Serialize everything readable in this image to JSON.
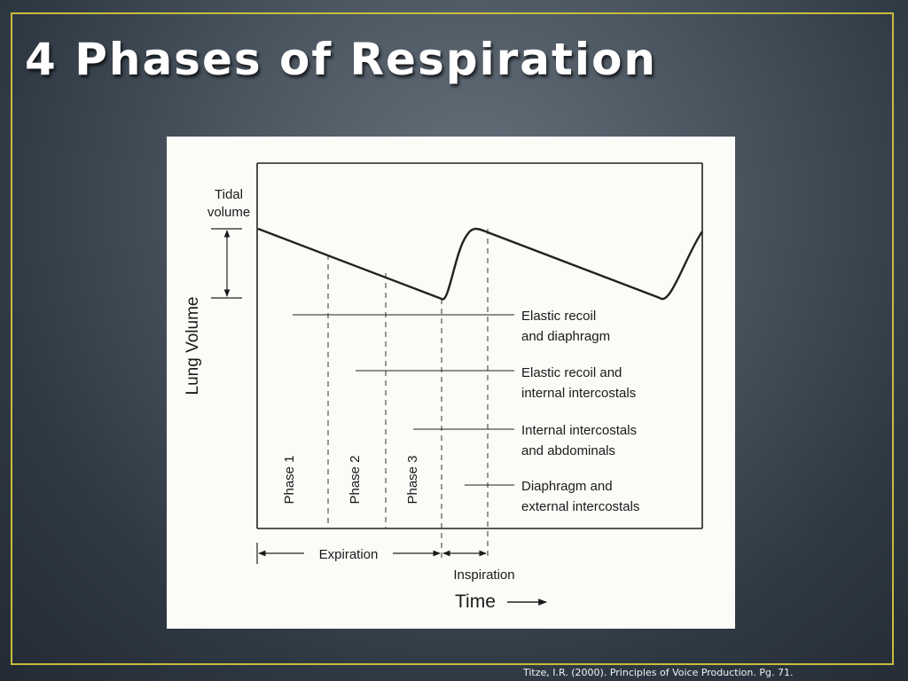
{
  "slide": {
    "title": "4 Phases of Respiration",
    "citation": "Titze, I.R. (2000). Principles of Voice Production. Pg. 71."
  },
  "diagram": {
    "y_axis_label": "Lung Volume",
    "x_axis_label": "Time",
    "tidal_volume_label": [
      "Tidal",
      "volume"
    ],
    "phases": [
      "Phase 1",
      "Phase 2",
      "Phase 3"
    ],
    "muscle_labels": [
      [
        "Elastic recoil",
        "and diaphragm"
      ],
      [
        "Elastic recoil and",
        "internal intercostals"
      ],
      [
        "Internal intercostals",
        "and abdominals"
      ],
      [
        "Diaphragm and",
        "external intercostals"
      ]
    ],
    "expiration_label": "Expiration",
    "inspiration_label": "Inspiration"
  },
  "colors": {
    "frame": "#c9bc3c",
    "title": "#ffffff",
    "figure_bg": "#fbfbf8",
    "ink": "#1a1a1a"
  }
}
